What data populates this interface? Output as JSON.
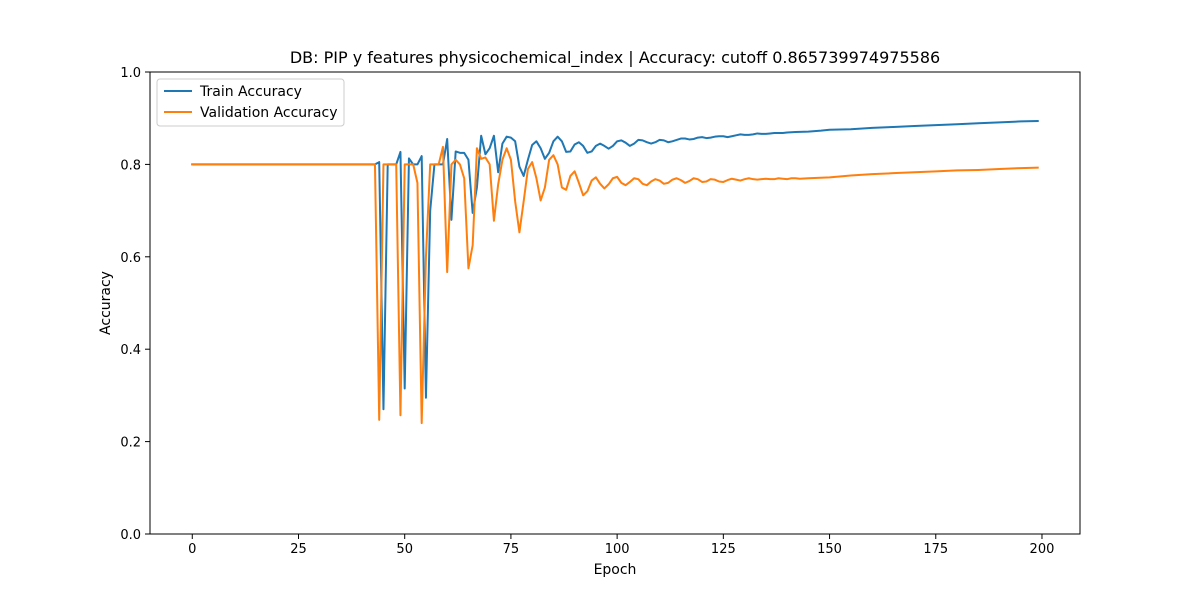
{
  "chart_data": {
    "type": "line",
    "title": "DB: PIP y features physicochemical_index | Accuracy: cutoff 0.865739974975586",
    "xlabel": "Epoch",
    "ylabel": "Accuracy",
    "xlim": [
      -9.95,
      208.95
    ],
    "ylim": [
      0.0,
      1.0
    ],
    "xticks": [
      0,
      25,
      50,
      75,
      100,
      125,
      150,
      175,
      200
    ],
    "yticks": [
      0.0,
      0.2,
      0.4,
      0.6,
      0.8,
      1.0
    ],
    "xtick_labels": [
      "0",
      "25",
      "50",
      "75",
      "100",
      "125",
      "150",
      "175",
      "200"
    ],
    "ytick_labels": [
      "0.0",
      "0.2",
      "0.4",
      "0.6",
      "0.8",
      "1.0"
    ],
    "grid": false,
    "legend_position": "upper-left",
    "series": [
      {
        "name": "Train Accuracy",
        "color": "#1f77b4",
        "points": [
          [
            0,
            0.8
          ],
          [
            43,
            0.8
          ],
          [
            44,
            0.805
          ],
          [
            45,
            0.27
          ],
          [
            46,
            0.8
          ],
          [
            48,
            0.8
          ],
          [
            49,
            0.827
          ],
          [
            50,
            0.315
          ],
          [
            51,
            0.813
          ],
          [
            52,
            0.8
          ],
          [
            53,
            0.8
          ],
          [
            54,
            0.818
          ],
          [
            55,
            0.295
          ],
          [
            56,
            0.7
          ],
          [
            57,
            0.8
          ],
          [
            58,
            0.8
          ],
          [
            59,
            0.8
          ],
          [
            60,
            0.855
          ],
          [
            61,
            0.68
          ],
          [
            62,
            0.828
          ],
          [
            63,
            0.825
          ],
          [
            64,
            0.825
          ],
          [
            65,
            0.81
          ],
          [
            66,
            0.695
          ],
          [
            67,
            0.75
          ],
          [
            68,
            0.862
          ],
          [
            69,
            0.822
          ],
          [
            70,
            0.835
          ],
          [
            71,
            0.862
          ],
          [
            72,
            0.783
          ],
          [
            73,
            0.845
          ],
          [
            74,
            0.86
          ],
          [
            75,
            0.858
          ],
          [
            76,
            0.85
          ],
          [
            77,
            0.795
          ],
          [
            78,
            0.775
          ],
          [
            79,
            0.81
          ],
          [
            80,
            0.842
          ],
          [
            81,
            0.85
          ],
          [
            82,
            0.835
          ],
          [
            83,
            0.812
          ],
          [
            84,
            0.825
          ],
          [
            85,
            0.85
          ],
          [
            86,
            0.86
          ],
          [
            87,
            0.85
          ],
          [
            88,
            0.827
          ],
          [
            89,
            0.828
          ],
          [
            90,
            0.843
          ],
          [
            91,
            0.848
          ],
          [
            92,
            0.84
          ],
          [
            93,
            0.825
          ],
          [
            94,
            0.828
          ],
          [
            95,
            0.84
          ],
          [
            96,
            0.845
          ],
          [
            97,
            0.84
          ],
          [
            98,
            0.834
          ],
          [
            99,
            0.84
          ],
          [
            100,
            0.85
          ],
          [
            101,
            0.852
          ],
          [
            102,
            0.847
          ],
          [
            103,
            0.84
          ],
          [
            104,
            0.845
          ],
          [
            105,
            0.853
          ],
          [
            106,
            0.852
          ],
          [
            107,
            0.848
          ],
          [
            108,
            0.845
          ],
          [
            109,
            0.848
          ],
          [
            110,
            0.853
          ],
          [
            111,
            0.852
          ],
          [
            112,
            0.848
          ],
          [
            113,
            0.85
          ],
          [
            114,
            0.853
          ],
          [
            115,
            0.856
          ],
          [
            116,
            0.856
          ],
          [
            117,
            0.854
          ],
          [
            118,
            0.855
          ],
          [
            119,
            0.858
          ],
          [
            120,
            0.859
          ],
          [
            121,
            0.857
          ],
          [
            122,
            0.858
          ],
          [
            123,
            0.86
          ],
          [
            124,
            0.861
          ],
          [
            125,
            0.861
          ],
          [
            126,
            0.859
          ],
          [
            127,
            0.861
          ],
          [
            128,
            0.863
          ],
          [
            129,
            0.865
          ],
          [
            130,
            0.864
          ],
          [
            131,
            0.864
          ],
          [
            132,
            0.865
          ],
          [
            133,
            0.867
          ],
          [
            134,
            0.866
          ],
          [
            135,
            0.866
          ],
          [
            136,
            0.867
          ],
          [
            137,
            0.868
          ],
          [
            138,
            0.868
          ],
          [
            139,
            0.868
          ],
          [
            140,
            0.869
          ],
          [
            142,
            0.87
          ],
          [
            145,
            0.871
          ],
          [
            148,
            0.873
          ],
          [
            150,
            0.875
          ],
          [
            155,
            0.876
          ],
          [
            160,
            0.879
          ],
          [
            165,
            0.881
          ],
          [
            170,
            0.883
          ],
          [
            175,
            0.885
          ],
          [
            180,
            0.887
          ],
          [
            185,
            0.889
          ],
          [
            190,
            0.891
          ],
          [
            195,
            0.893
          ],
          [
            199,
            0.894
          ]
        ]
      },
      {
        "name": "Validation Accuracy",
        "color": "#ff7f0e",
        "points": [
          [
            0,
            0.8
          ],
          [
            43,
            0.8
          ],
          [
            44,
            0.247
          ],
          [
            45,
            0.8
          ],
          [
            46,
            0.8
          ],
          [
            47,
            0.8
          ],
          [
            48,
            0.8
          ],
          [
            49,
            0.257
          ],
          [
            50,
            0.8
          ],
          [
            51,
            0.8
          ],
          [
            52,
            0.8
          ],
          [
            53,
            0.76
          ],
          [
            54,
            0.24
          ],
          [
            55,
            0.6
          ],
          [
            56,
            0.8
          ],
          [
            57,
            0.8
          ],
          [
            58,
            0.8
          ],
          [
            59,
            0.838
          ],
          [
            60,
            0.567
          ],
          [
            61,
            0.8
          ],
          [
            62,
            0.81
          ],
          [
            63,
            0.8
          ],
          [
            64,
            0.77
          ],
          [
            65,
            0.575
          ],
          [
            66,
            0.625
          ],
          [
            67,
            0.835
          ],
          [
            68,
            0.812
          ],
          [
            69,
            0.815
          ],
          [
            70,
            0.8
          ],
          [
            71,
            0.678
          ],
          [
            72,
            0.757
          ],
          [
            73,
            0.81
          ],
          [
            74,
            0.835
          ],
          [
            75,
            0.81
          ],
          [
            76,
            0.72
          ],
          [
            77,
            0.653
          ],
          [
            78,
            0.72
          ],
          [
            79,
            0.79
          ],
          [
            80,
            0.805
          ],
          [
            81,
            0.77
          ],
          [
            82,
            0.722
          ],
          [
            83,
            0.75
          ],
          [
            84,
            0.81
          ],
          [
            85,
            0.82
          ],
          [
            86,
            0.8
          ],
          [
            87,
            0.75
          ],
          [
            88,
            0.745
          ],
          [
            89,
            0.775
          ],
          [
            90,
            0.785
          ],
          [
            91,
            0.76
          ],
          [
            92,
            0.733
          ],
          [
            93,
            0.742
          ],
          [
            94,
            0.765
          ],
          [
            95,
            0.772
          ],
          [
            96,
            0.758
          ],
          [
            97,
            0.748
          ],
          [
            98,
            0.757
          ],
          [
            99,
            0.77
          ],
          [
            100,
            0.773
          ],
          [
            101,
            0.76
          ],
          [
            102,
            0.755
          ],
          [
            103,
            0.762
          ],
          [
            104,
            0.77
          ],
          [
            105,
            0.768
          ],
          [
            106,
            0.758
          ],
          [
            107,
            0.755
          ],
          [
            108,
            0.763
          ],
          [
            109,
            0.768
          ],
          [
            110,
            0.765
          ],
          [
            111,
            0.758
          ],
          [
            112,
            0.76
          ],
          [
            113,
            0.767
          ],
          [
            114,
            0.77
          ],
          [
            115,
            0.766
          ],
          [
            116,
            0.76
          ],
          [
            117,
            0.764
          ],
          [
            118,
            0.77
          ],
          [
            119,
            0.768
          ],
          [
            120,
            0.762
          ],
          [
            121,
            0.763
          ],
          [
            122,
            0.768
          ],
          [
            123,
            0.767
          ],
          [
            124,
            0.763
          ],
          [
            125,
            0.762
          ],
          [
            126,
            0.766
          ],
          [
            127,
            0.769
          ],
          [
            128,
            0.767
          ],
          [
            129,
            0.765
          ],
          [
            130,
            0.768
          ],
          [
            131,
            0.77
          ],
          [
            132,
            0.768
          ],
          [
            133,
            0.767
          ],
          [
            134,
            0.768
          ],
          [
            135,
            0.769
          ],
          [
            136,
            0.768
          ],
          [
            137,
            0.768
          ],
          [
            138,
            0.77
          ],
          [
            139,
            0.769
          ],
          [
            140,
            0.768
          ],
          [
            141,
            0.77
          ],
          [
            142,
            0.77
          ],
          [
            143,
            0.769
          ],
          [
            145,
            0.77
          ],
          [
            150,
            0.772
          ],
          [
            155,
            0.776
          ],
          [
            160,
            0.779
          ],
          [
            165,
            0.781
          ],
          [
            170,
            0.783
          ],
          [
            175,
            0.785
          ],
          [
            180,
            0.787
          ],
          [
            185,
            0.788
          ],
          [
            190,
            0.79
          ],
          [
            195,
            0.792
          ],
          [
            199,
            0.793
          ]
        ]
      }
    ]
  }
}
